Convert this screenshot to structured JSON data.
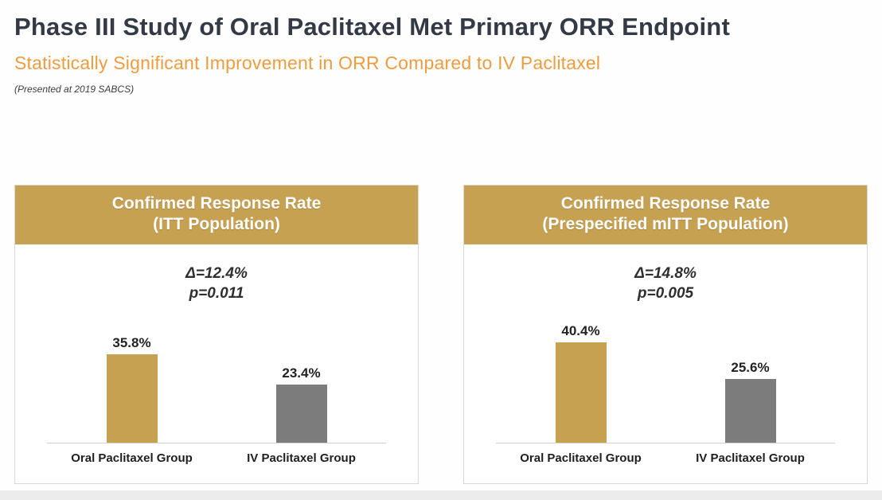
{
  "page": {
    "title": "Phase III Study of Oral Paclitaxel Met Primary ORR Endpoint",
    "subtitle": "Statistically Significant Improvement in ORR Compared to IV Paclitaxel",
    "note": "(Presented at 2019 SABCS)"
  },
  "colors": {
    "title_text": "#333a46",
    "subtitle_text": "#ed9c3f",
    "panel_header_bg": "#c6a152",
    "oral_bar": "#c6a152",
    "iv_bar": "#7c7c7c"
  },
  "chart_data": [
    {
      "type": "bar",
      "title": "Confirmed Response Rate",
      "subtitle": "(ITT Population)",
      "annotation": [
        "Δ=12.4%",
        "p=0.011"
      ],
      "categories": [
        "Oral Paclitaxel Group",
        "IV Paclitaxel Group"
      ],
      "values": [
        35.8,
        23.4
      ],
      "value_labels": [
        "35.8%",
        "23.4%"
      ],
      "bar_colors": [
        "#c6a152",
        "#7c7c7c"
      ],
      "ylabel": "",
      "xlabel": "",
      "ylim": [
        0,
        45
      ],
      "grid": false,
      "legend": "none"
    },
    {
      "type": "bar",
      "title": "Confirmed Response Rate",
      "subtitle": "(Prespecified mITT Population)",
      "annotation": [
        "Δ=14.8%",
        "p=0.005"
      ],
      "categories": [
        "Oral Paclitaxel Group",
        "IV Paclitaxel Group"
      ],
      "values": [
        40.4,
        25.6
      ],
      "value_labels": [
        "40.4%",
        "25.6%"
      ],
      "bar_colors": [
        "#c6a152",
        "#7c7c7c"
      ],
      "ylabel": "",
      "xlabel": "",
      "ylim": [
        0,
        45
      ],
      "grid": false,
      "legend": "none"
    }
  ]
}
